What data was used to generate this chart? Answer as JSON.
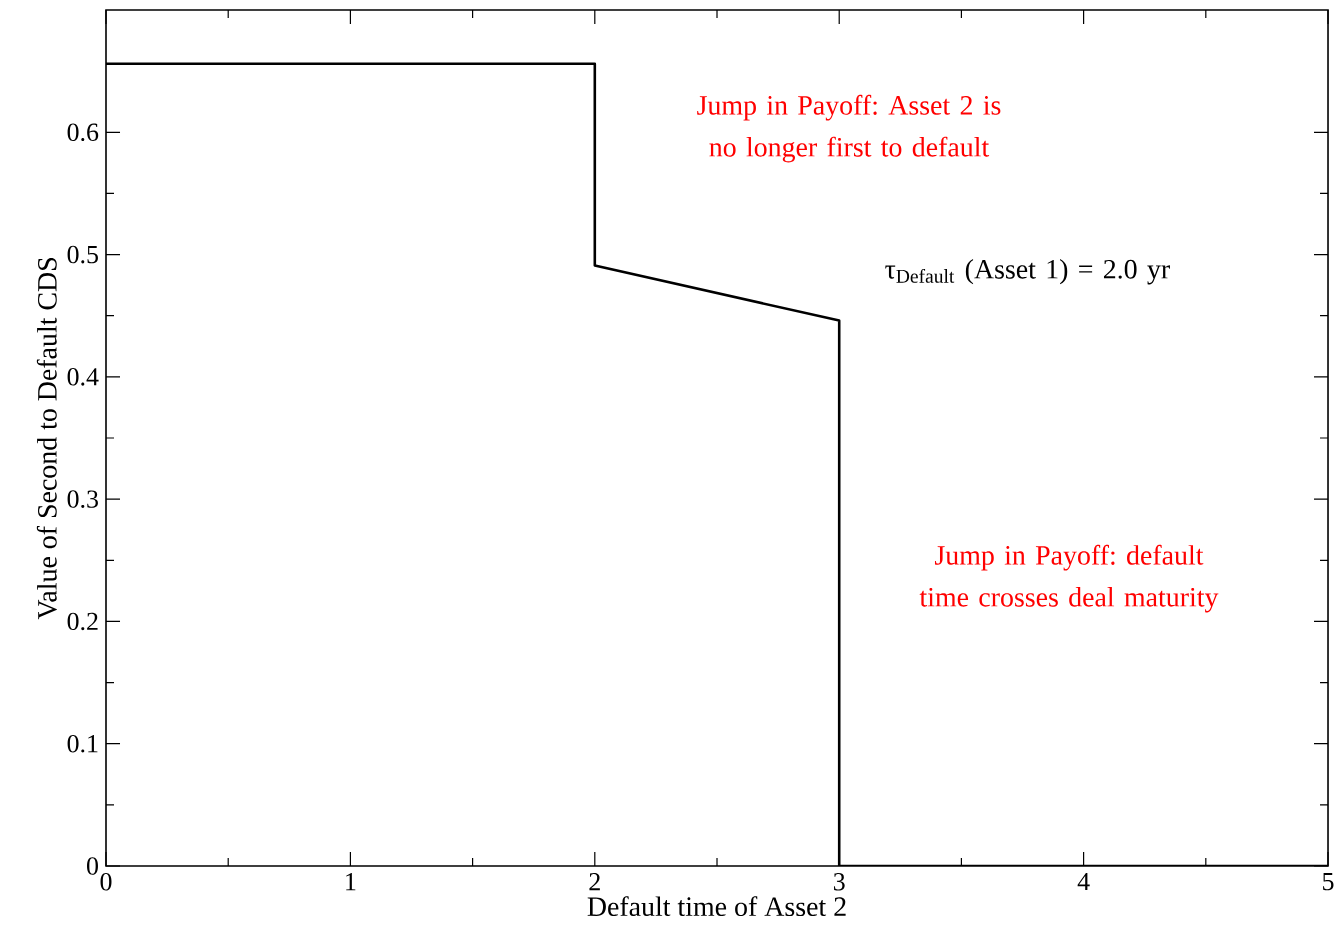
{
  "chart_data": {
    "type": "line",
    "xlabel": "Default time of Asset 2",
    "ylabel": "Value of Second to Default CDS",
    "series": [
      {
        "color": "#000000",
        "x": [
          0,
          2,
          2,
          3,
          3,
          5
        ],
        "values": [
          0.656,
          0.656,
          0.491,
          0.446,
          0,
          0
        ]
      }
    ],
    "xlim": [
      0,
      5
    ],
    "xticks": [
      0,
      1,
      2,
      3,
      4,
      5
    ],
    "ylim": [
      0,
      0.7
    ],
    "yticks": [
      0,
      0.1,
      0.2,
      0.3,
      0.4,
      0.5,
      0.6
    ],
    "marker": "none",
    "line_style": "solid",
    "annotations": [
      "Jump in Payoff: Asset 2 is no longer first to default",
      "τ$_{Default}$ (Asset 1) = 2.0 yr",
      "Jump in Payoff: default time crosses deal maturity"
    ]
  }
}
